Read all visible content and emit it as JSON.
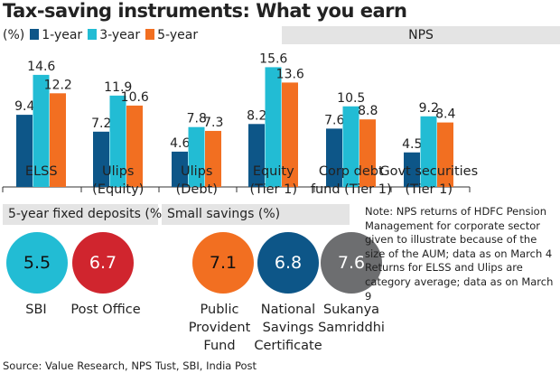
{
  "title": "Tax-saving instruments: What you earn",
  "legend": {
    "unit": "(%)",
    "items": [
      "1-year",
      "3-year",
      "5-year"
    ]
  },
  "nps_label": "NPS",
  "colors": {
    "1-year": "#0d5688",
    "3-year": "#22bcd4",
    "5-year": "#f26f21",
    "header_bg": "#e4e4e4"
  },
  "chart_data": {
    "type": "bar",
    "title": "Tax-saving instruments: What you earn",
    "ylabel": "(%)",
    "categories": [
      [
        "ELSS",
        ""
      ],
      [
        "Ulips",
        "(Equity)"
      ],
      [
        "Ulips",
        "(Debt)"
      ],
      [
        "Equity",
        "(Tier 1)"
      ],
      [
        "Corp debt",
        "fund (Tier 1)"
      ],
      [
        "Govt securities",
        "(Tier 1)"
      ]
    ],
    "series": [
      {
        "name": "1-year",
        "values": [
          9.4,
          7.2,
          4.6,
          8.2,
          7.6,
          4.5
        ]
      },
      {
        "name": "3-year",
        "values": [
          14.6,
          11.9,
          7.8,
          15.6,
          10.5,
          9.2
        ]
      },
      {
        "name": "5-year",
        "values": [
          12.2,
          10.6,
          7.3,
          13.6,
          8.8,
          8.4
        ]
      }
    ],
    "ylim": [
      0,
      16
    ],
    "legend": "top-left",
    "grid": false
  },
  "fixed_deposits": {
    "header": "5-year fixed deposits (%)",
    "items": [
      {
        "label": "SBI",
        "value": "5.5",
        "color": "#22bcd4"
      },
      {
        "label": "Post Office",
        "value": "6.7",
        "color": "#d0252e"
      }
    ]
  },
  "small_savings": {
    "header": "Small savings (%)",
    "items": [
      {
        "label": "Public Provident Fund",
        "value": "7.1",
        "color": "#f26f21"
      },
      {
        "label": "National Savings Certificate",
        "value": "6.8",
        "color": "#0d5688"
      },
      {
        "label": "Sukanya Samriddhi",
        "value": "7.6",
        "color": "#6d6e70"
      }
    ]
  },
  "note": "Note: NPS returns of HDFC Pension Management for corporate sector given to illustrate because of the size of the AUM; data as on March 4 Returns for ELSS and Ulips are category average; data as on March 9",
  "source": "Source: Value Research, NPS Tust, SBI, India Post"
}
